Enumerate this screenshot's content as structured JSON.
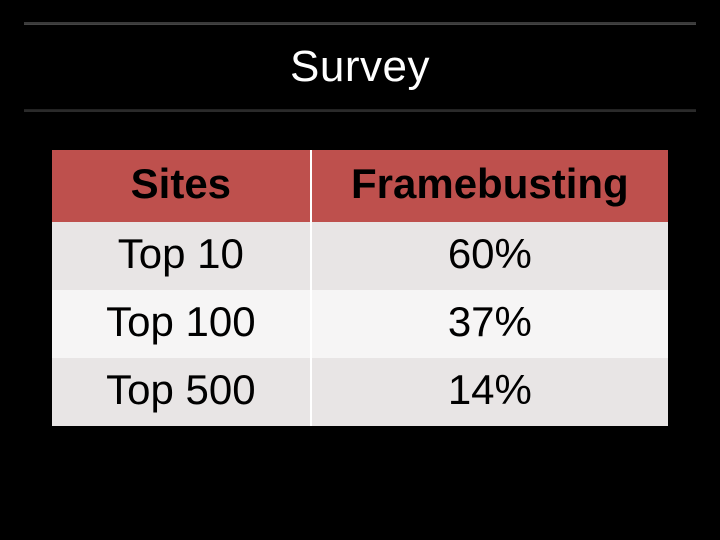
{
  "slide": {
    "title": "Survey",
    "background_color": "#000000",
    "title_color": "#ffffff",
    "title_fontsize": 44
  },
  "table": {
    "type": "table",
    "header_bg": "#be504d",
    "header_text_color": "#000000",
    "row_alt_bg_a": "#e8e5e5",
    "row_alt_bg_b": "#f6f5f5",
    "cell_text_color": "#000000",
    "cell_fontsize": 42,
    "col_widths_pct": [
      42,
      58
    ],
    "columns": [
      "Sites",
      "Framebusting"
    ],
    "rows": [
      [
        "Top 10",
        "60%"
      ],
      [
        "Top 100",
        "37%"
      ],
      [
        "Top 500",
        "14%"
      ]
    ]
  }
}
